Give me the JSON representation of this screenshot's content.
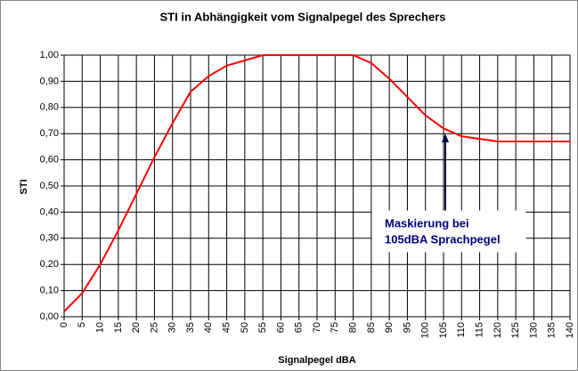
{
  "chart_data": {
    "type": "line",
    "title": "STI in Abhängigkeit vom Signalpegel des Sprechers",
    "x_label": "Signalpegel dBA",
    "y_label": "STI",
    "x": [
      0,
      5,
      10,
      15,
      20,
      25,
      30,
      35,
      40,
      45,
      50,
      55,
      60,
      65,
      70,
      75,
      80,
      85,
      90,
      95,
      100,
      105,
      110,
      115,
      120,
      125,
      130,
      135,
      140
    ],
    "values": [
      0.02,
      0.09,
      0.2,
      0.33,
      0.47,
      0.61,
      0.74,
      0.86,
      0.92,
      0.96,
      0.98,
      1.0,
      1.0,
      1.0,
      1.0,
      1.0,
      1.0,
      0.97,
      0.91,
      0.84,
      0.77,
      0.72,
      0.69,
      0.68,
      0.67,
      0.67,
      0.67,
      0.67,
      0.67
    ],
    "color": "#ff0000",
    "xlim": [
      0,
      140
    ],
    "xticks": [
      0,
      5,
      10,
      15,
      20,
      25,
      30,
      35,
      40,
      45,
      50,
      55,
      60,
      65,
      70,
      75,
      80,
      85,
      90,
      95,
      100,
      105,
      110,
      115,
      120,
      125,
      130,
      135,
      140
    ],
    "ylim": [
      0,
      1
    ],
    "yticks": [
      {
        "value": 0,
        "label": "0,00"
      },
      {
        "value": 0.1,
        "label": "0,10"
      },
      {
        "value": 0.2,
        "label": "0,20"
      },
      {
        "value": 0.3,
        "label": "0,30"
      },
      {
        "value": 0.4,
        "label": "0,40"
      },
      {
        "value": 0.5,
        "label": "0,50"
      },
      {
        "value": 0.6,
        "label": "0,60"
      },
      {
        "value": 0.7,
        "label": "0,70"
      },
      {
        "value": 0.8,
        "label": "0,80"
      },
      {
        "value": 0.9,
        "label": "0,90"
      },
      {
        "value": 1,
        "label": "1,00"
      }
    ],
    "grid": true,
    "annotation": [
      "Maskierung bei",
      "105dBA Sprachpegel"
    ]
  }
}
